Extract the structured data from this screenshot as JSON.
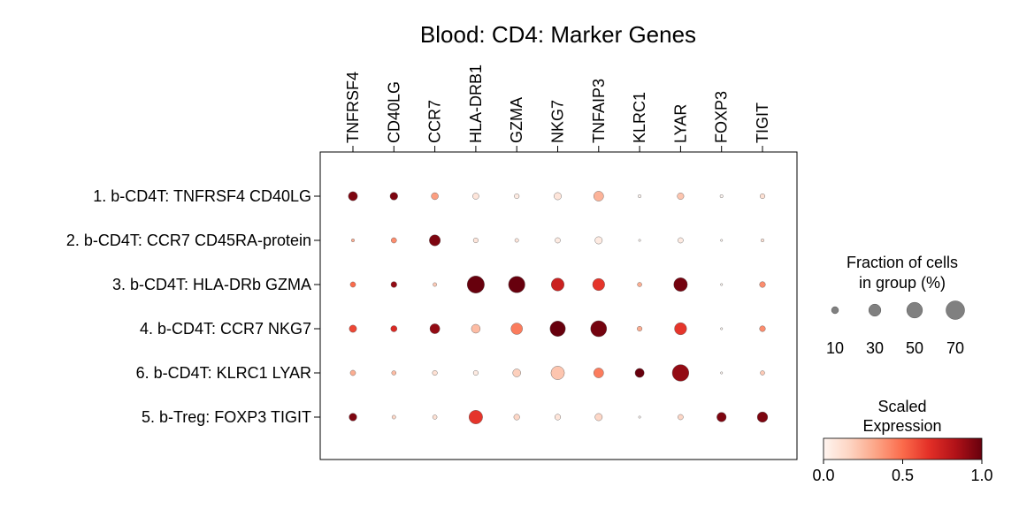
{
  "chart_data": {
    "type": "dotplot",
    "title": "Blood: CD4: Marker Genes",
    "genes": [
      "TNFRSF4",
      "CD40LG",
      "CCR7",
      "HLA-DRB1",
      "GZMA",
      "NKG7",
      "TNFAIP3",
      "KLRC1",
      "LYAR",
      "FOXP3",
      "TIGIT"
    ],
    "groups": [
      "1. b-CD4T: TNFRSF4 CD40LG",
      "2. b-CD4T: CCR7 CD45RA-protein",
      "3. b-CD4T: HLA-DRb GZMA",
      "4. b-CD4T: CCR7 NKG7",
      "6. b-CD4T: KLRC1 LYAR",
      "5. b-Treg: FOXP3 TIGIT"
    ],
    "fraction_pct": [
      [
        17,
        12,
        10,
        8,
        5,
        11,
        20,
        2,
        9,
        2,
        5
      ],
      [
        2,
        6,
        25,
        5,
        3,
        6,
        11,
        1,
        6,
        1,
        2
      ],
      [
        6,
        7,
        3,
        60,
        55,
        34,
        30,
        4,
        38,
        1,
        7
      ],
      [
        11,
        8,
        20,
        16,
        27,
        48,
        52,
        5,
        30,
        1,
        7
      ],
      [
        6,
        4,
        5,
        5,
        13,
        37,
        20,
        17,
        56,
        1,
        4
      ],
      [
        12,
        3,
        4,
        38,
        7,
        7,
        11,
        1,
        6,
        18,
        22
      ]
    ],
    "scaled_expression": [
      [
        0.95,
        0.95,
        0.35,
        0.08,
        0.05,
        0.08,
        0.28,
        0.0,
        0.22,
        0.0,
        0.1
      ],
      [
        0.3,
        0.4,
        0.95,
        0.08,
        0.08,
        0.05,
        0.05,
        0.0,
        0.05,
        0.0,
        0.1
      ],
      [
        0.5,
        0.9,
        0.2,
        1.0,
        1.0,
        0.75,
        0.65,
        0.3,
        0.97,
        0.0,
        0.4
      ],
      [
        0.6,
        0.7,
        0.9,
        0.25,
        0.45,
        1.0,
        0.97,
        0.3,
        0.65,
        0.0,
        0.4
      ],
      [
        0.3,
        0.25,
        0.1,
        0.05,
        0.18,
        0.22,
        0.45,
        1.0,
        0.9,
        0.0,
        0.2
      ],
      [
        0.95,
        0.15,
        0.1,
        0.65,
        0.15,
        0.08,
        0.15,
        0.0,
        0.15,
        0.95,
        0.95
      ]
    ],
    "size_legend": {
      "title_lines": [
        "Fraction of cells",
        "in group (%)"
      ],
      "values": [
        10,
        30,
        50,
        70
      ],
      "labels": [
        "10",
        "30",
        "50",
        "70"
      ]
    },
    "color_legend": {
      "title_lines": [
        "Scaled",
        "Expression"
      ],
      "range": [
        0.0,
        1.0
      ],
      "ticks": [
        "0.0",
        "0.5",
        "1.0"
      ],
      "colormap": [
        "#fff5f0",
        "#fdd4c2",
        "#fca486",
        "#fb6b4b",
        "#e32f27",
        "#b11218",
        "#67000d"
      ]
    }
  }
}
